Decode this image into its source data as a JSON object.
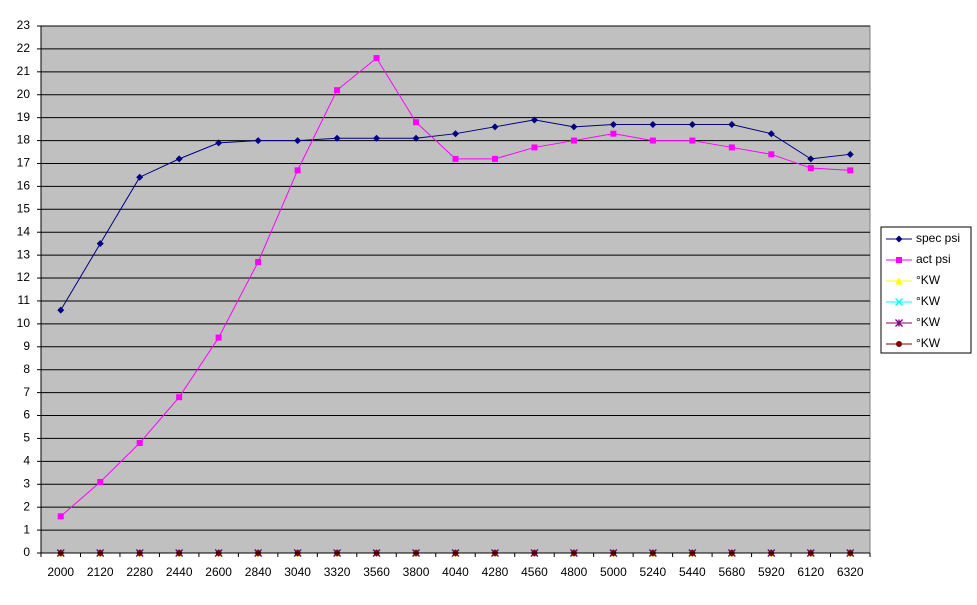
{
  "chart_data": {
    "type": "line",
    "categories": [
      "2000",
      "2120",
      "2280",
      "2440",
      "2600",
      "2840",
      "3040",
      "3320",
      "3560",
      "3800",
      "4040",
      "4280",
      "4560",
      "4800",
      "5000",
      "5240",
      "5440",
      "5680",
      "5920",
      "6120",
      "6320"
    ],
    "series": [
      {
        "name": "spec psi",
        "color": "#000080",
        "marker": "diamond",
        "values": [
          10.6,
          13.5,
          16.4,
          17.2,
          17.9,
          18.0,
          18.0,
          18.1,
          18.1,
          18.1,
          18.3,
          18.6,
          18.9,
          18.6,
          18.7,
          18.7,
          18.7,
          18.7,
          18.3,
          17.2,
          17.4
        ]
      },
      {
        "name": "act psi",
        "color": "#ff00ff",
        "marker": "square",
        "values": [
          1.6,
          3.1,
          4.8,
          6.8,
          9.4,
          12.7,
          16.7,
          20.2,
          21.6,
          18.8,
          17.2,
          17.2,
          17.7,
          18.0,
          18.3,
          18.0,
          18.0,
          17.7,
          17.4,
          16.8,
          16.7
        ]
      },
      {
        "name": "°KW",
        "color": "#ffff00",
        "marker": "triangle",
        "values": [
          0,
          0,
          0,
          0,
          0,
          0,
          0,
          0,
          0,
          0,
          0,
          0,
          0,
          0,
          0,
          0,
          0,
          0,
          0,
          0,
          0
        ]
      },
      {
        "name": "°KW",
        "color": "#00ffff",
        "marker": "x",
        "values": [
          0,
          0,
          0,
          0,
          0,
          0,
          0,
          0,
          0,
          0,
          0,
          0,
          0,
          0,
          0,
          0,
          0,
          0,
          0,
          0,
          0
        ]
      },
      {
        "name": "°KW",
        "color": "#800080",
        "marker": "star",
        "values": [
          0,
          0,
          0,
          0,
          0,
          0,
          0,
          0,
          0,
          0,
          0,
          0,
          0,
          0,
          0,
          0,
          0,
          0,
          0,
          0,
          0
        ]
      },
      {
        "name": "°KW",
        "color": "#800000",
        "marker": "circle",
        "values": [
          0,
          0,
          0,
          0,
          0,
          0,
          0,
          0,
          0,
          0,
          0,
          0,
          0,
          0,
          0,
          0,
          0,
          0,
          0,
          0,
          0
        ]
      }
    ],
    "ylim": [
      0,
      23
    ],
    "yticks": [
      0,
      1,
      2,
      3,
      4,
      5,
      6,
      7,
      8,
      9,
      10,
      11,
      12,
      13,
      14,
      15,
      16,
      17,
      18,
      19,
      20,
      21,
      22,
      23
    ],
    "grid": true,
    "legend": "right"
  }
}
